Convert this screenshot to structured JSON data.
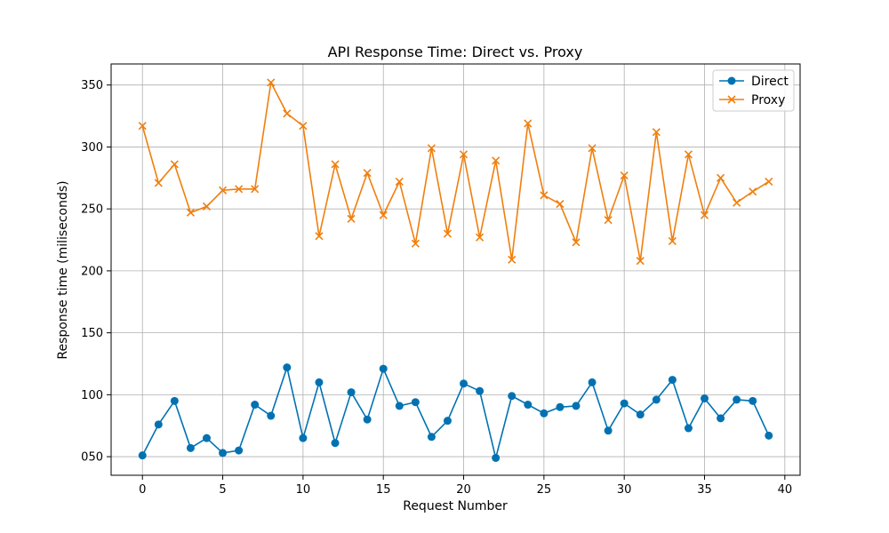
{
  "chart_data": {
    "type": "line",
    "title": "API Response Time: Direct vs. Proxy",
    "xlabel": "Request Number",
    "ylabel": "Response time (miliseconds)",
    "xlim": [
      -1.95,
      40.95
    ],
    "ylim": [
      35,
      367
    ],
    "xticks": [
      0,
      5,
      10,
      15,
      20,
      25,
      30,
      35,
      40
    ],
    "yticks": [
      50,
      100,
      150,
      200,
      250,
      300,
      350
    ],
    "ytick_labels": [
      "050",
      "100",
      "150",
      "200",
      "250",
      "300",
      "350"
    ],
    "grid": true,
    "legend": "top-right",
    "x": [
      0,
      1,
      2,
      3,
      4,
      5,
      6,
      7,
      8,
      9,
      10,
      11,
      12,
      13,
      14,
      15,
      16,
      17,
      18,
      19,
      20,
      21,
      22,
      23,
      24,
      25,
      26,
      27,
      28,
      29,
      30,
      31,
      32,
      33,
      34,
      35,
      36,
      37,
      38,
      39
    ],
    "series": [
      {
        "name": "Direct",
        "color": "#0072b2",
        "marker": "circle",
        "values": [
          51,
          76,
          95,
          57,
          65,
          53,
          55,
          92,
          83,
          122,
          65,
          110,
          61,
          102,
          80,
          121,
          91,
          94,
          66,
          79,
          109,
          103,
          49,
          99,
          92,
          85,
          90,
          91,
          110,
          71,
          93,
          84,
          96,
          112,
          73,
          97,
          81,
          96,
          95,
          67
        ]
      },
      {
        "name": "Proxy",
        "color": "#f07f0e",
        "marker": "x",
        "values": [
          317,
          271,
          286,
          247,
          252,
          265,
          266,
          266,
          352,
          327,
          317,
          228,
          286,
          242,
          279,
          245,
          272,
          222,
          299,
          230,
          294,
          227,
          289,
          209,
          319,
          261,
          254,
          223,
          299,
          241,
          277,
          208,
          312,
          224,
          294,
          245,
          275,
          255,
          264,
          272
        ]
      }
    ]
  }
}
